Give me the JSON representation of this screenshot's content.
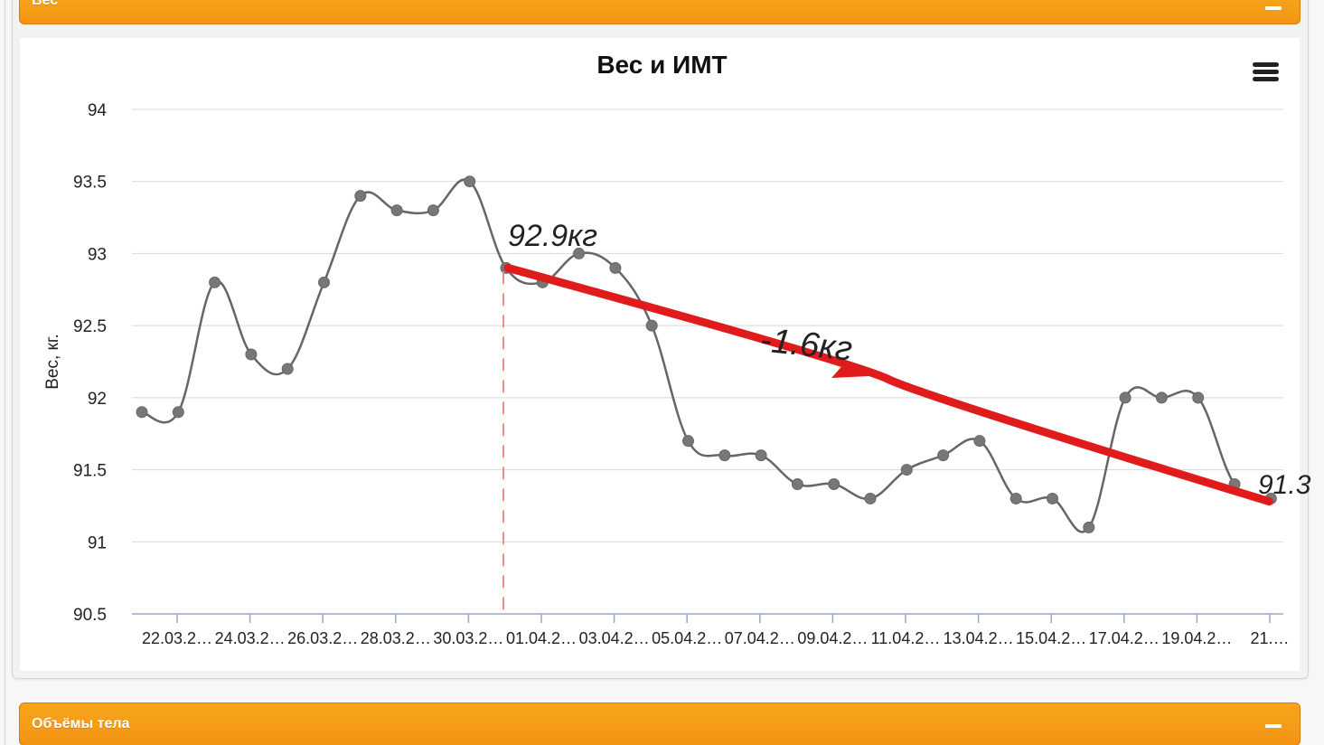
{
  "panels": {
    "weight_title": "Вес",
    "volumes_title": "Объёмы тела"
  },
  "colors": {
    "header": "#f39412",
    "series": "#666666",
    "annotation": "#e01b1b",
    "annotation_light": "#f08a8a"
  },
  "icons": {
    "menu": "hamburger-icon",
    "collapse": "minus-icon"
  },
  "chart_data": {
    "type": "line",
    "title": "Вес и ИМТ",
    "ylabel": "Вес, кг.",
    "xlabel": "",
    "ylim": [
      90.5,
      94
    ],
    "yticks": [
      "94",
      "93.5",
      "93",
      "92.5",
      "92",
      "91.5",
      "91",
      "90.5"
    ],
    "ytick_values": [
      94,
      93.5,
      93,
      92.5,
      92,
      91.5,
      91,
      90.5
    ],
    "xtick_labels": [
      "22.03.2…",
      "24.03.2…",
      "26.03.2…",
      "28.03.2…",
      "30.03.2…",
      "01.04.2…",
      "03.04.2…",
      "05.04.2…",
      "07.04.2…",
      "09.04.2…",
      "11.04.2…",
      "13.04.2…",
      "15.04.2…",
      "17.04.2…",
      "19.04.2…",
      "21.…"
    ],
    "grid": true,
    "legend": "none",
    "series": [
      {
        "values": [
          91.9,
          91.9,
          92.8,
          92.3,
          92.2,
          92.8,
          93.4,
          93.3,
          93.3,
          93.5,
          92.9,
          92.8,
          93.0,
          92.9,
          92.5,
          91.7,
          91.6,
          91.6,
          91.4,
          91.4,
          91.3,
          91.5,
          91.6,
          91.7,
          91.3,
          91.3,
          91.1,
          92.0,
          92.0,
          92.0,
          91.4,
          91.3
        ]
      }
    ],
    "annotations": {
      "start_label": "92.9кг",
      "delta_label": "-1.6кг",
      "end_label": "91.3",
      "trend_start": [
        10,
        92.9
      ],
      "trend_end": [
        31,
        91.28
      ],
      "marker_index": 10
    }
  }
}
